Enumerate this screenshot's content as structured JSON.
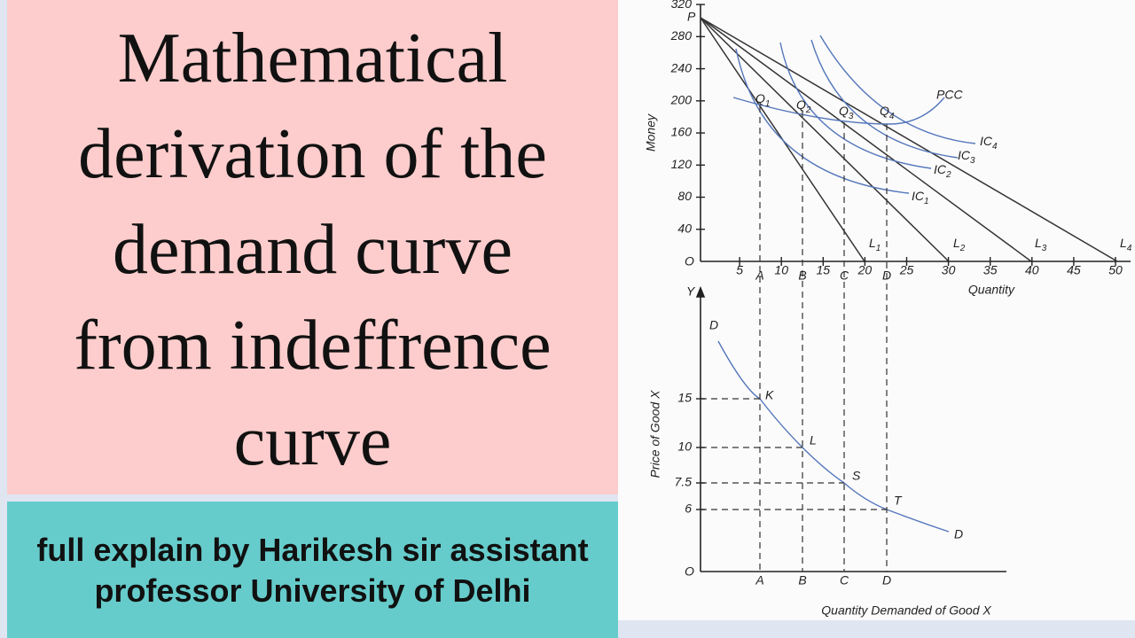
{
  "title": [
    "Mathematical",
    "derivation of the",
    "demand curve",
    "from indeffrence",
    "curve"
  ],
  "caption": [
    "full explain by Harikesh sir assistant",
    "professor University of Delhi"
  ],
  "figure": {
    "top": {
      "y_label": "Money",
      "x_label": "Quantity",
      "origin": "O",
      "point_p": "P",
      "yticks": [
        40,
        80,
        120,
        160,
        200,
        240,
        280,
        320
      ],
      "xticks": [
        5,
        10,
        15,
        20,
        25,
        30,
        35,
        40,
        45,
        50
      ],
      "quantities": [
        "A",
        "B",
        "C",
        "D"
      ],
      "budget_lines": [
        {
          "letter": "L",
          "sub": "1"
        },
        {
          "letter": "L",
          "sub": "2"
        },
        {
          "letter": "L",
          "sub": "3"
        },
        {
          "letter": "L",
          "sub": "4"
        }
      ],
      "equilibria": [
        {
          "letter": "Q",
          "sub": "1"
        },
        {
          "letter": "Q",
          "sub": "2"
        },
        {
          "letter": "Q",
          "sub": "3"
        },
        {
          "letter": "Q",
          "sub": "4"
        }
      ],
      "curves": [
        {
          "letter": "IC",
          "sub": "1"
        },
        {
          "letter": "IC",
          "sub": "2"
        },
        {
          "letter": "IC",
          "sub": "3"
        },
        {
          "letter": "IC",
          "sub": "4"
        }
      ],
      "pcc": "PCC"
    },
    "bottom": {
      "y_axis": "Y",
      "origin": "O",
      "y_label": "Price of Good X",
      "x_label": "Quantity Demanded of Good X",
      "yticks": [
        15,
        10,
        7.5,
        6
      ],
      "quantities": [
        "A",
        "B",
        "C",
        "D"
      ],
      "points": [
        "K",
        "L",
        "S",
        "T"
      ],
      "curve_start": "D",
      "curve_end": "D"
    }
  }
}
